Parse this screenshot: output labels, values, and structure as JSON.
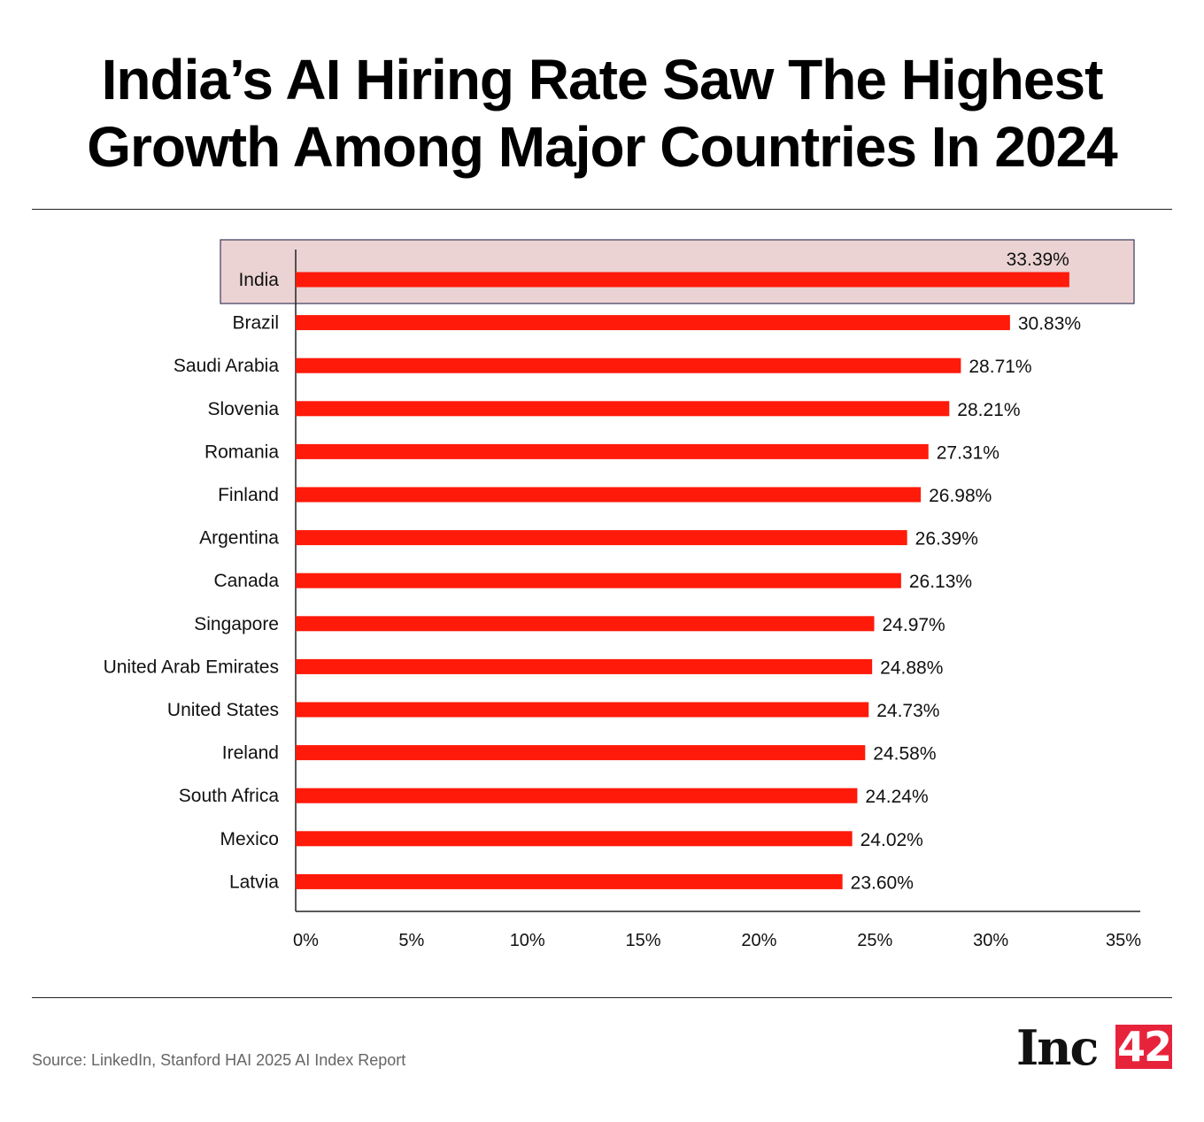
{
  "title_lines": [
    "India’s AI Hiring Rate Saw The Highest",
    "Growth Among Major Countries In 2024"
  ],
  "source": "Source: LinkedIn, Stanford HAI 2025 AI Index Report",
  "logo": {
    "text": "Inc",
    "number": "42"
  },
  "colors": {
    "bar": "#ff1a0a",
    "highlight_bg": "#ecd3d3",
    "highlight_border": "#3a3a5a",
    "axis": "#222222",
    "logo_accent": "#e7233c"
  },
  "chart_data": {
    "type": "bar",
    "orientation": "horizontal",
    "title": "India’s AI Hiring Rate Saw The Highest Growth Among Major Countries In 2024",
    "categories": [
      "India",
      "Brazil",
      "Saudi Arabia",
      "Slovenia",
      "Romania",
      "Finland",
      "Argentina",
      "Canada",
      "Singapore",
      "United Arab Emirates",
      "United States",
      "Ireland",
      "South Africa",
      "Mexico",
      "Latvia"
    ],
    "values": [
      33.39,
      30.83,
      28.71,
      28.21,
      27.31,
      26.98,
      26.39,
      26.13,
      24.97,
      24.88,
      24.73,
      24.58,
      24.24,
      24.02,
      23.6
    ],
    "value_labels": [
      "33.39%",
      "30.83%",
      "28.71%",
      "28.21%",
      "27.31%",
      "26.98%",
      "26.39%",
      "26.13%",
      "24.97%",
      "24.88%",
      "24.73%",
      "24.58%",
      "24.24%",
      "24.02%",
      "23.60%"
    ],
    "highlight": "India",
    "xlim": [
      0,
      35
    ],
    "xticks": [
      0,
      5,
      10,
      15,
      20,
      25,
      30,
      35
    ],
    "xtick_labels": [
      "0%",
      "5%",
      "10%",
      "15%",
      "20%",
      "25%",
      "30%",
      "35%"
    ],
    "xlabel": "",
    "ylabel": "",
    "grid": false
  }
}
